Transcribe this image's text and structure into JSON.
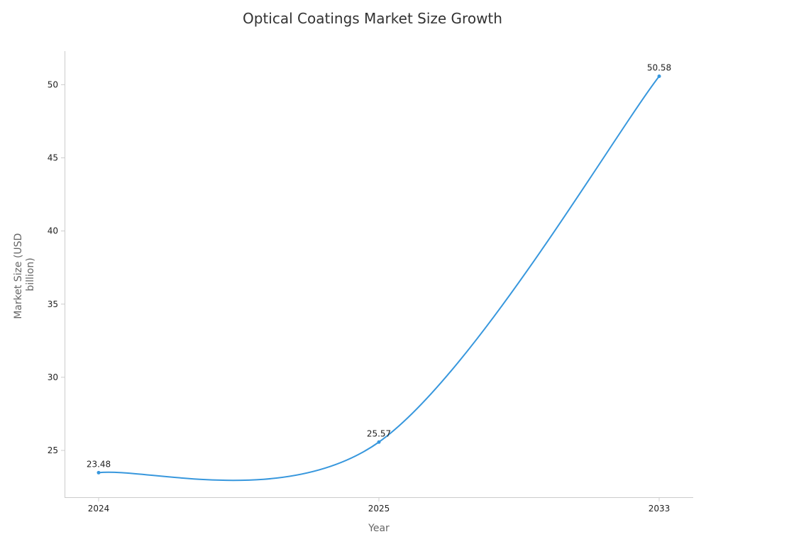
{
  "chart_data": {
    "type": "line",
    "title": "Optical Coatings Market Size Growth",
    "xlabel": "Year",
    "ylabel_lines": [
      "Market Size (USD",
      "billion)"
    ],
    "categories": [
      "2024",
      "2025",
      "2033"
    ],
    "series": [
      {
        "name": "Market Size",
        "values": [
          23.48,
          25.57,
          50.58
        ],
        "labels": [
          "23.48",
          "25.57",
          "50.58"
        ]
      }
    ],
    "yticks": [
      "25",
      "30",
      "35",
      "40",
      "45",
      "50"
    ],
    "ylim": [
      21.8,
      52.3
    ],
    "grid": false,
    "line_color": "#3797dd",
    "axis_color": "#cccccc"
  }
}
